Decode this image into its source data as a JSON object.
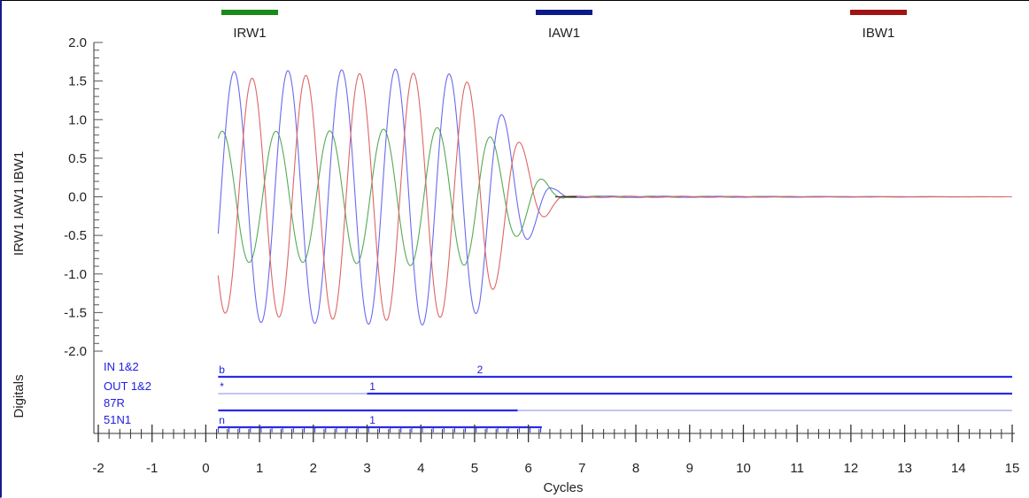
{
  "chart_data": {
    "type": "line",
    "xlabel": "Cycles",
    "ylabel": "IRW1 IAW1 IBW1",
    "digitals_label": "Digitals",
    "xlim": [
      -2,
      15
    ],
    "ylim": [
      -2.0,
      2.0
    ],
    "x_ticks": [
      -2,
      -1,
      0,
      1,
      2,
      3,
      4,
      5,
      6,
      7,
      8,
      9,
      10,
      11,
      12,
      13,
      14,
      15
    ],
    "y_ticks": [
      "2.0",
      "1.5",
      "1.0",
      "0.5",
      "0.0",
      "-0.5",
      "-1.0",
      "-1.5",
      "-2.0"
    ],
    "grid": false,
    "legend_position": "top",
    "series": [
      {
        "name": "IRW1",
        "color": "#1a8a1a",
        "trace_color": "#55aa55",
        "x": [
          0.23,
          1.1,
          2.1,
          3.1,
          4.1,
          5.1,
          6.1,
          6.45,
          6.7,
          15.0
        ],
        "amplitude": [
          0.85,
          0.85,
          0.85,
          0.87,
          0.9,
          0.88,
          0.35,
          0.1,
          0.01,
          0.0
        ],
        "phase_deg": -20
      },
      {
        "name": "IAW1",
        "color": "#0b1a8a",
        "trace_color": "#6a6aee",
        "x": [
          0.23,
          1.1,
          2.1,
          3.1,
          4.1,
          5.1,
          6.1,
          6.45,
          6.7,
          15.0
        ],
        "amplitude": [
          1.62,
          1.63,
          1.64,
          1.65,
          1.66,
          1.5,
          0.45,
          0.12,
          0.01,
          0.0
        ],
        "phase_deg": -100
      },
      {
        "name": "IBW1",
        "color": "#a01414",
        "trace_color": "#dd6666",
        "x": [
          0.23,
          1.1,
          2.1,
          3.1,
          4.1,
          5.1,
          6.1,
          6.45,
          6.7,
          15.0
        ],
        "amplitude": [
          1.5,
          1.55,
          1.58,
          1.6,
          1.6,
          1.45,
          0.45,
          0.15,
          0.01,
          0.0
        ],
        "phase_deg": 140
      }
    ],
    "digitals": [
      {
        "name": "IN 1&2",
        "marker": "b",
        "marker_x": 0.3,
        "label2": "2",
        "label2_x": 5.1,
        "segments": [
          [
            0.23,
            15.0
          ]
        ]
      },
      {
        "name": "OUT 1&2",
        "marker": "*",
        "marker_x": 0.3,
        "label2": "1",
        "label2_x": 3.1,
        "segments": [
          [
            3.0,
            15.0
          ]
        ],
        "thin": [
          [
            0.23,
            3.0
          ]
        ]
      },
      {
        "name": "87R",
        "marker": "",
        "marker_x": 0,
        "label2": "",
        "label2_x": 0,
        "segments": [
          [
            0.23,
            5.8
          ]
        ],
        "thin": [
          [
            5.8,
            15.0
          ]
        ]
      },
      {
        "name": "51N1",
        "marker": "n",
        "marker_x": 0.3,
        "label2": "1",
        "label2_x": 3.1,
        "segments": [
          [
            0.23,
            6.25
          ]
        ],
        "ticked": true
      }
    ]
  }
}
